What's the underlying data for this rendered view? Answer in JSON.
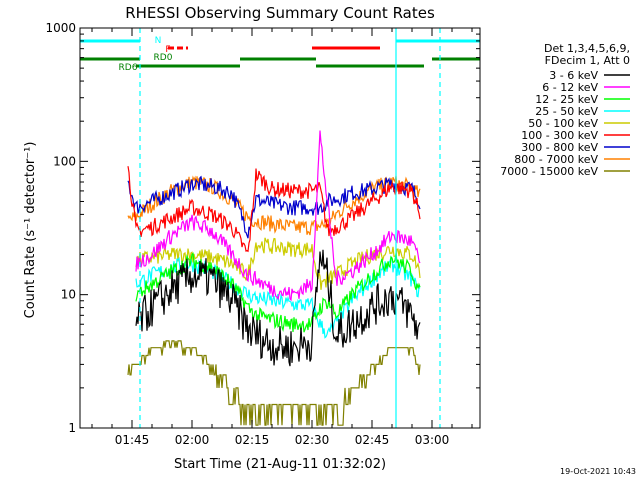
{
  "chart_data": {
    "type": "line",
    "title": "RHESSI Observing Summary Count Rates",
    "xlabel": "Start Time (21-Aug-11 01:32:02)",
    "ylabel": "Count Rate (s⁻¹ detector⁻¹)",
    "x_unit": "minutes",
    "xlim": [
      "01:32",
      "03:12"
    ],
    "ylim": [
      1,
      1000
    ],
    "y_scale": "log",
    "x_tick_labels": [
      "01:45",
      "02:00",
      "02:15",
      "02:30",
      "02:45",
      "03:00"
    ],
    "y_tick_labels": [
      "1",
      "10",
      "100",
      "1000"
    ],
    "legend_header": [
      "Det 1,3,4,5,6,9,",
      "FDecim 1, Att 0"
    ],
    "legend_position": "right",
    "timestamp": "19-Oct-2021 10:43",
    "series": [
      {
        "name": "3 - 6 keV",
        "color": "#000000",
        "x": [
          "01:46",
          "01:50",
          "01:55",
          "02:00",
          "02:05",
          "02:10",
          "02:14",
          "02:16",
          "02:20",
          "02:25",
          "02:30",
          "02:32",
          "02:34",
          "02:36",
          "02:40",
          "02:45",
          "02:50",
          "02:55",
          "02:57"
        ],
        "y": [
          6,
          8,
          11,
          14,
          13,
          9,
          5.5,
          5,
          4.2,
          4,
          4.5,
          20,
          13,
          5,
          6,
          8,
          10,
          7,
          5
        ]
      },
      {
        "name": "6 - 12 keV",
        "color": "#ff00ff",
        "x": [
          "01:46",
          "01:50",
          "01:55",
          "02:00",
          "02:05",
          "02:10",
          "02:14",
          "02:16",
          "02:20",
          "02:25",
          "02:30",
          "02:32",
          "02:34",
          "02:36",
          "02:40",
          "02:45",
          "02:50",
          "02:55",
          "02:57"
        ],
        "y": [
          17,
          20,
          28,
          35,
          30,
          20,
          14,
          13,
          11,
          10,
          12,
          160,
          45,
          13,
          15,
          20,
          28,
          25,
          17
        ]
      },
      {
        "name": "12 - 25 keV",
        "color": "#00ff00",
        "x": [
          "01:46",
          "01:50",
          "01:55",
          "02:00",
          "02:05",
          "02:10",
          "02:14",
          "02:16",
          "02:20",
          "02:25",
          "02:30",
          "02:32",
          "02:34",
          "02:36",
          "02:40",
          "02:45",
          "02:50",
          "02:55",
          "02:57"
        ],
        "y": [
          10,
          12,
          15,
          18,
          16,
          12,
          8,
          7,
          6.5,
          6,
          6,
          8,
          9,
          7,
          10,
          14,
          19,
          15,
          10
        ]
      },
      {
        "name": "25 - 50 keV",
        "color": "#00ffff",
        "x": [
          "01:46",
          "01:50",
          "01:55",
          "02:00",
          "02:05",
          "02:10",
          "02:14",
          "02:16",
          "02:20",
          "02:25",
          "02:30",
          "02:32",
          "02:34",
          "02:36",
          "02:40",
          "02:45",
          "02:50",
          "02:55",
          "02:57"
        ],
        "y": [
          12,
          14,
          16,
          17,
          15,
          12,
          10,
          9.5,
          9,
          8.5,
          8.3,
          6,
          5,
          6,
          9,
          13,
          17,
          13,
          10
        ]
      },
      {
        "name": "50 - 100 keV",
        "color": "#cccc00",
        "x": [
          "01:46",
          "01:50",
          "01:55",
          "02:00",
          "02:05",
          "02:10",
          "02:14",
          "02:16",
          "02:20",
          "02:25",
          "02:30",
          "02:32",
          "02:34",
          "02:36",
          "02:40",
          "02:45",
          "02:50",
          "02:55",
          "02:57"
        ],
        "y": [
          18,
          19,
          20,
          20,
          19,
          17,
          14,
          24,
          23,
          22,
          22,
          12,
          13,
          14,
          17,
          20,
          22,
          20,
          15
        ]
      },
      {
        "name": "100 - 300 keV",
        "color": "#ff0000",
        "x": [
          "01:44",
          "01:46",
          "01:50",
          "01:55",
          "02:00",
          "02:05",
          "02:10",
          "02:14",
          "02:16",
          "02:20",
          "02:25",
          "02:30",
          "02:32",
          "02:34",
          "02:36",
          "02:40",
          "02:45",
          "02:50",
          "02:55",
          "02:57"
        ],
        "y": [
          90,
          30,
          32,
          38,
          45,
          40,
          32,
          20,
          80,
          62,
          60,
          60,
          62,
          30,
          32,
          38,
          50,
          65,
          60,
          40
        ]
      },
      {
        "name": "300 - 800 keV",
        "color": "#0000cc",
        "x": [
          "01:44",
          "01:46",
          "01:50",
          "01:55",
          "02:00",
          "02:05",
          "02:10",
          "02:14",
          "02:16",
          "02:20",
          "02:25",
          "02:30",
          "02:32",
          "02:34",
          "02:36",
          "02:40",
          "02:45",
          "02:50",
          "02:55",
          "02:57"
        ],
        "y": [
          70,
          45,
          50,
          58,
          68,
          65,
          58,
          30,
          52,
          48,
          45,
          45,
          45,
          50,
          52,
          58,
          62,
          68,
          62,
          50
        ]
      },
      {
        "name": "800 - 7000 keV",
        "color": "#ff8000",
        "x": [
          "01:44",
          "01:46",
          "01:50",
          "01:55",
          "02:00",
          "02:05",
          "02:10",
          "02:14",
          "02:16",
          "02:20",
          "02:25",
          "02:30",
          "02:32",
          "02:34",
          "02:36",
          "02:40",
          "02:45",
          "02:50",
          "02:55",
          "02:57"
        ],
        "y": [
          36,
          38,
          48,
          60,
          70,
          65,
          52,
          38,
          36,
          34,
          32,
          32,
          33,
          34,
          40,
          50,
          62,
          70,
          63,
          55
        ]
      },
      {
        "name": "7000 - 15000 keV",
        "color": "#808000",
        "x": [
          "01:44",
          "01:46",
          "01:50",
          "01:55",
          "02:00",
          "02:05",
          "02:10",
          "02:14",
          "02:16",
          "02:20",
          "02:25",
          "02:30",
          "02:32",
          "02:34",
          "02:36",
          "02:40",
          "02:45",
          "02:50",
          "02:55",
          "02:57"
        ],
        "y": [
          3,
          3,
          4,
          4.5,
          4,
          3,
          2,
          1.5,
          1.5,
          1.5,
          1.5,
          1.5,
          1.5,
          1.5,
          1.5,
          2,
          3,
          4,
          4,
          3
        ]
      }
    ],
    "status_bars": [
      {
        "label": "N",
        "color": "#00ffff",
        "segments": [
          [
            "01:32",
            "01:47"
          ],
          [
            "02:51",
            "03:12"
          ]
        ]
      },
      {
        "label": "F",
        "color": "#ff0000",
        "dashed": true,
        "segments": [
          [
            "01:54",
            "01:59"
          ],
          [
            "02:30",
            "02:47"
          ]
        ]
      },
      {
        "label": "RD0",
        "color": "#008000",
        "segments": [
          [
            "01:32",
            "01:47"
          ],
          [
            "02:12",
            "02:31"
          ],
          [
            "03:00",
            "03:12"
          ]
        ]
      },
      {
        "label": "RD6",
        "color": "#008000",
        "segments": [
          [
            "01:46",
            "02:12"
          ],
          [
            "02:31",
            "02:58"
          ]
        ]
      }
    ],
    "vertical_markers": [
      {
        "x": "01:47",
        "color": "#00ffff",
        "style": "dashed"
      },
      {
        "x": "02:51",
        "color": "#00ffff",
        "style": "solid"
      },
      {
        "x": "03:02",
        "color": "#00ffff",
        "style": "dashed"
      }
    ]
  }
}
